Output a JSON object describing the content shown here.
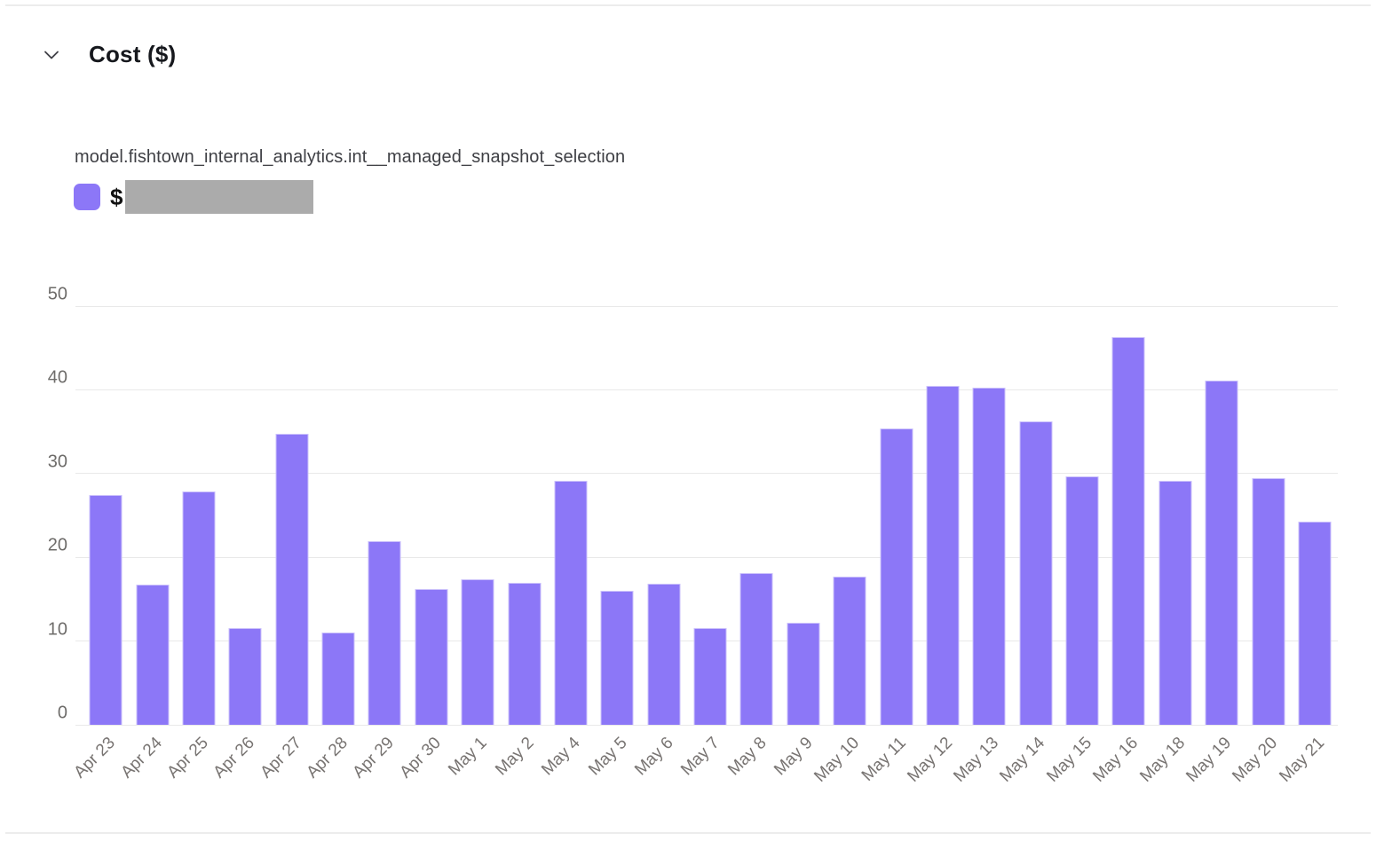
{
  "header": {
    "title": "Cost ($)"
  },
  "legend": {
    "series_label": "model.fishtown_internal_analytics.int__managed_snapshot_selection",
    "value_prefix": "$",
    "value_redacted": true
  },
  "colors": {
    "bar": "#8c77f7",
    "redaction": "#ababab",
    "gridline": "#e9e9e9",
    "axis_label": "#6e6c6a"
  },
  "chart_data": {
    "type": "bar",
    "title": "Cost ($)",
    "series_name": "model.fishtown_internal_analytics.int__managed_snapshot_selection",
    "categories": [
      "Apr 23",
      "Apr 24",
      "Apr 25",
      "Apr 26",
      "Apr 27",
      "Apr 28",
      "Apr 29",
      "Apr 30",
      "May 1",
      "May 2",
      "May 4",
      "May 5",
      "May 6",
      "May 7",
      "May 8",
      "May 9",
      "May 10",
      "May 11",
      "May 12",
      "May 13",
      "May 14",
      "May 15",
      "May 16",
      "May 18",
      "May 19",
      "May 20",
      "May 21"
    ],
    "values": [
      27.4,
      16.7,
      27.9,
      11.5,
      34.7,
      11.0,
      21.9,
      16.2,
      17.4,
      16.9,
      29.1,
      16.0,
      16.8,
      11.5,
      18.1,
      12.2,
      17.7,
      35.4,
      40.5,
      40.3,
      36.2,
      29.7,
      46.3,
      29.1,
      41.1,
      29.5,
      24.3
    ],
    "xlabel": "",
    "ylabel": "",
    "ylim": [
      0,
      50
    ],
    "yticks": [
      0,
      10,
      20,
      30,
      40,
      50
    ],
    "grid": true,
    "legend_position": "top-left",
    "bar_color": "#8c77f7"
  }
}
